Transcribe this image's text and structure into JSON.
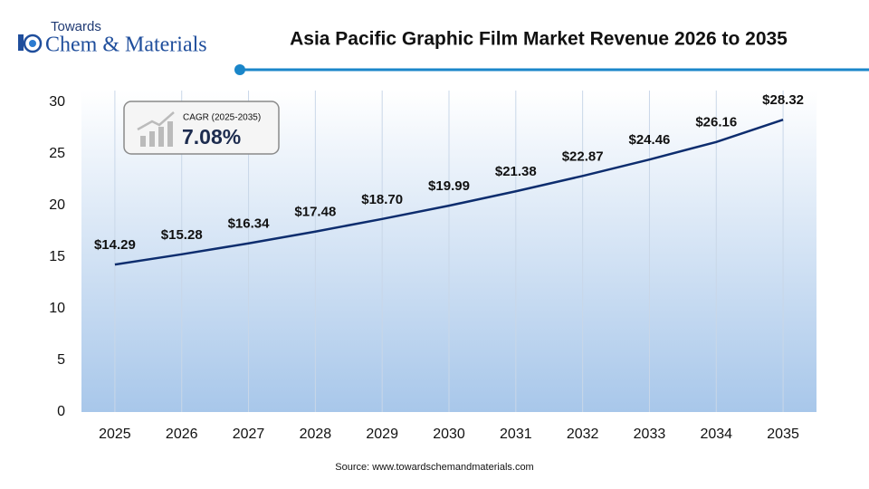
{
  "logo": {
    "top": "Towards",
    "main": "Chem & Materials"
  },
  "chart_data": {
    "type": "line",
    "title": "Asia Pacific Graphic Film Market Revenue 2026 to 2035",
    "categories": [
      "2025",
      "2026",
      "2027",
      "2028",
      "2029",
      "2030",
      "2031",
      "2032",
      "2033",
      "2034",
      "2035"
    ],
    "values": [
      14.29,
      15.28,
      16.34,
      17.48,
      18.7,
      19.99,
      21.38,
      22.87,
      24.46,
      26.16,
      28.32
    ],
    "value_labels": [
      "$14.29",
      "$15.28",
      "$16.34",
      "$17.48",
      "$18.70",
      "$19.99",
      "$21.38",
      "$22.87",
      "$24.46",
      "$26.16",
      "$28.32"
    ],
    "color": "#0d2d6e",
    "ylim": [
      0,
      30
    ],
    "yticks": [
      0,
      5,
      10,
      15,
      20,
      25,
      30
    ],
    "annotation": {
      "label": "CAGR (2025-2035)",
      "value": "7.08%"
    },
    "source": "Source: www.towardschemandmaterials.com"
  }
}
